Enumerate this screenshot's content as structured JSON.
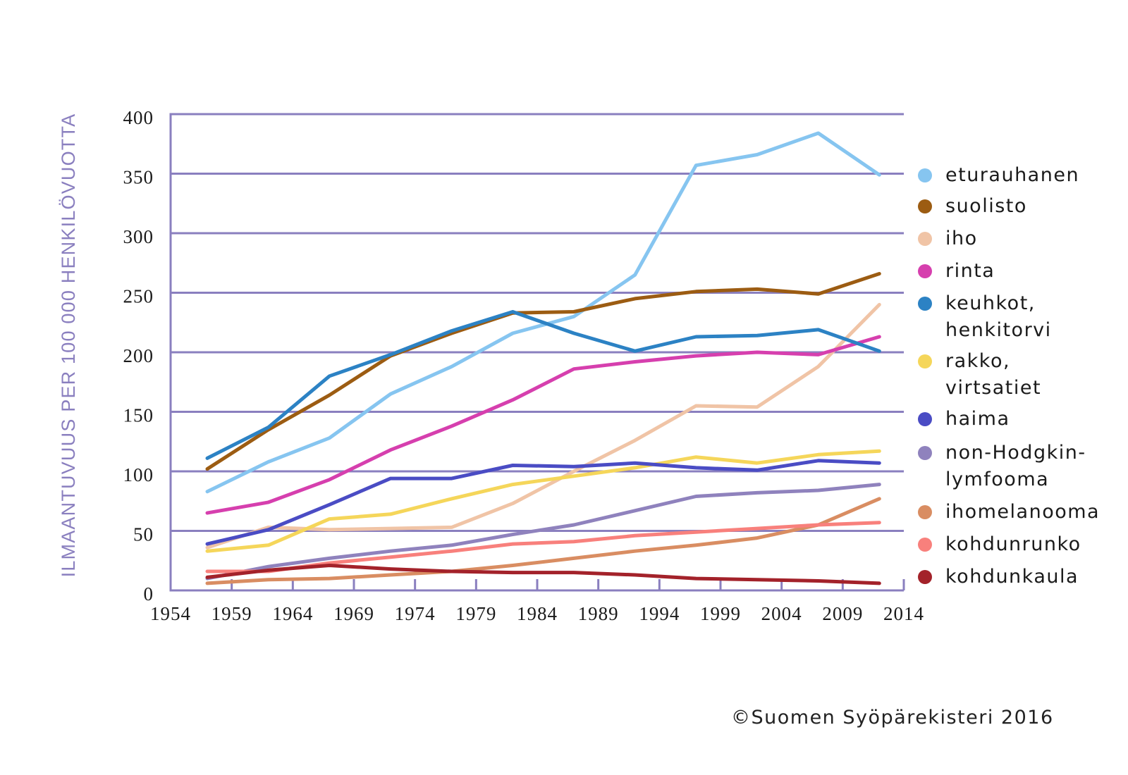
{
  "chart_data": {
    "type": "line",
    "title": "",
    "xlabel": "",
    "ylabel": "ILMAANTUVUUS PER 100 000 HENKILÖVUOTTA",
    "xlim": [
      1954,
      2014
    ],
    "ylim": [
      0,
      400
    ],
    "x_ticks": [
      1954,
      1959,
      1964,
      1969,
      1974,
      1979,
      1984,
      1989,
      1994,
      1999,
      2004,
      2009,
      2014
    ],
    "y_ticks": [
      0,
      50,
      100,
      150,
      200,
      250,
      300,
      350,
      400
    ],
    "grid": "horizontal",
    "legend_position": "right",
    "x": [
      1957,
      1962,
      1967,
      1972,
      1977,
      1982,
      1987,
      1992,
      1997,
      2002,
      2007,
      2012
    ],
    "series": [
      {
        "name": "eturauhanen",
        "color": "#86c5f0",
        "values": [
          83,
          108,
          128,
          165,
          188,
          216,
          230,
          265,
          357,
          366,
          384,
          349
        ]
      },
      {
        "name": "suolisto",
        "color": "#9c5c12",
        "values": [
          102,
          135,
          164,
          197,
          216,
          233,
          234,
          245,
          251,
          253,
          249,
          266
        ]
      },
      {
        "name": "iho",
        "color": "#f0c4a6",
        "values": [
          36,
          53,
          51,
          52,
          53,
          73,
          100,
          126,
          155,
          154,
          188,
          240
        ]
      },
      {
        "name": "rinta",
        "color": "#d63fae",
        "values": [
          65,
          74,
          93,
          118,
          138,
          160,
          186,
          192,
          197,
          200,
          198,
          213
        ]
      },
      {
        "name": "keuhkot,\nhenkitorvi",
        "color": "#2c82c4",
        "values": [
          111,
          137,
          180,
          198,
          218,
          234,
          216,
          201,
          213,
          214,
          219,
          201
        ]
      },
      {
        "name": "rakko,\nvirtsatiet",
        "color": "#f5d65a",
        "values": [
          33,
          38,
          60,
          64,
          77,
          89,
          96,
          103,
          112,
          107,
          114,
          117
        ]
      },
      {
        "name": "haima",
        "color": "#4a4cc4",
        "values": [
          39,
          51,
          72,
          94,
          94,
          105,
          104,
          107,
          103,
          101,
          109,
          107
        ]
      },
      {
        "name": "non-Hodgkin-\nlymfooma",
        "color": "#8f82bd",
        "values": [
          10,
          20,
          27,
          33,
          38,
          47,
          55,
          67,
          79,
          82,
          84,
          89
        ]
      },
      {
        "name": "ihomelanooma",
        "color": "#d98d62",
        "values": [
          6,
          9,
          10,
          13,
          16,
          21,
          27,
          33,
          38,
          44,
          55,
          77
        ]
      },
      {
        "name": "kohdunrunko",
        "color": "#f8807c",
        "values": [
          16,
          16,
          23,
          28,
          33,
          39,
          41,
          46,
          49,
          52,
          55,
          57
        ]
      },
      {
        "name": "kohdunkaula",
        "color": "#a3222a",
        "values": [
          11,
          17,
          21,
          18,
          16,
          15,
          15,
          13,
          10,
          9,
          8,
          6
        ]
      }
    ]
  },
  "axis_color": "#8a7fbf",
  "copyright": "©Suomen Syöpärekisteri 2016"
}
